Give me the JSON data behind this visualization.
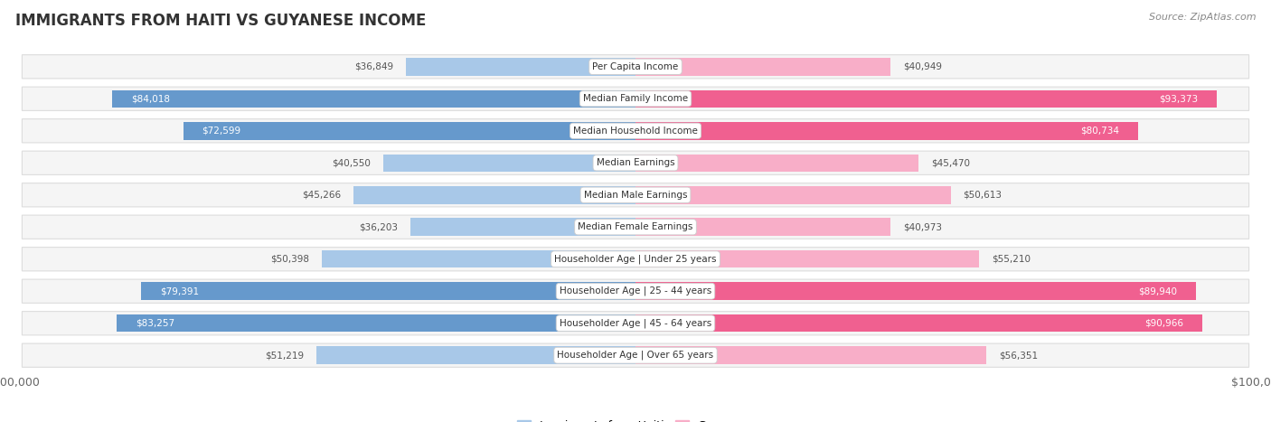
{
  "title": "IMMIGRANTS FROM HAITI VS GUYANESE INCOME",
  "source": "Source: ZipAtlas.com",
  "categories": [
    "Per Capita Income",
    "Median Family Income",
    "Median Household Income",
    "Median Earnings",
    "Median Male Earnings",
    "Median Female Earnings",
    "Householder Age | Under 25 years",
    "Householder Age | 25 - 44 years",
    "Householder Age | 45 - 64 years",
    "Householder Age | Over 65 years"
  ],
  "haiti_values": [
    36849,
    84018,
    72599,
    40550,
    45266,
    36203,
    50398,
    79391,
    83257,
    51219
  ],
  "guyanese_values": [
    40949,
    93373,
    80734,
    45470,
    50613,
    40973,
    55210,
    89940,
    90966,
    56351
  ],
  "haiti_labels": [
    "$36,849",
    "$84,018",
    "$72,599",
    "$40,550",
    "$45,266",
    "$36,203",
    "$50,398",
    "$79,391",
    "$83,257",
    "$51,219"
  ],
  "guyanese_labels": [
    "$40,949",
    "$93,373",
    "$80,734",
    "$45,470",
    "$50,613",
    "$40,973",
    "$55,210",
    "$89,940",
    "$90,966",
    "$56,351"
  ],
  "haiti_color_light": "#a8c8e8",
  "haiti_color_dark": "#6699cc",
  "guyanese_color_light": "#f8aec8",
  "guyanese_color_dark": "#f06090",
  "haiti_threshold": 60000,
  "guyanese_threshold": 60000,
  "max_value": 100000,
  "background_color": "#ffffff",
  "row_bg_color": "#f5f5f5",
  "row_border_color": "#dddddd"
}
